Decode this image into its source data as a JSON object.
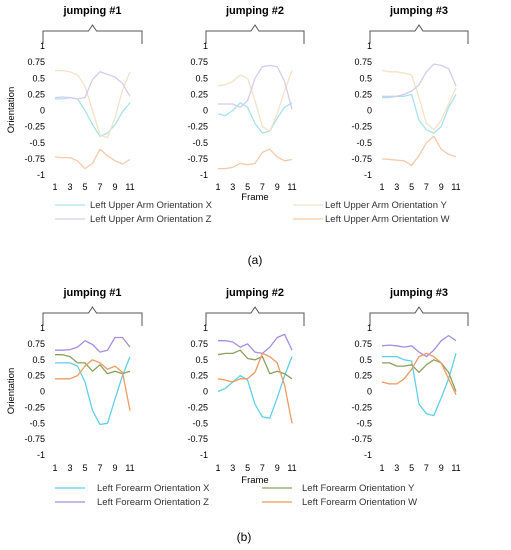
{
  "chart_data": [
    {
      "type": "line",
      "x": [
        1,
        2,
        3,
        4,
        5,
        6,
        7,
        8,
        9,
        10,
        11
      ],
      "title": "jumping #1",
      "ylabel": "Orientation",
      "xlabel": "",
      "ylim": [
        -1,
        1
      ],
      "xticks": [
        1,
        3,
        5,
        7,
        9,
        11
      ],
      "yticks": [
        1,
        0.75,
        0.5,
        0.25,
        0,
        -0.25,
        -0.5,
        -0.75,
        -1
      ],
      "series": [
        {
          "name": "Left Upper Arm Orientation X",
          "color": "#a8e2ee",
          "values": [
            0.18,
            0.18,
            0.2,
            0.18,
            0.0,
            -0.22,
            -0.4,
            -0.35,
            -0.22,
            -0.02,
            0.12
          ]
        },
        {
          "name": "Left Upper Arm Orientation Y",
          "color": "#f4e2c6",
          "values": [
            0.62,
            0.62,
            0.6,
            0.55,
            0.38,
            0.0,
            -0.38,
            -0.42,
            -0.12,
            0.32,
            0.6
          ]
        },
        {
          "name": "Left Upper Arm Orientation Z",
          "color": "#d4ccec",
          "values": [
            0.2,
            0.21,
            0.2,
            0.18,
            0.2,
            0.48,
            0.6,
            0.56,
            0.52,
            0.42,
            0.22
          ]
        },
        {
          "name": "Left Upper Arm Orientation W",
          "color": "#f7c9ab",
          "values": [
            -0.72,
            -0.73,
            -0.73,
            -0.78,
            -0.9,
            -0.82,
            -0.6,
            -0.7,
            -0.78,
            -0.83,
            -0.76
          ]
        }
      ]
    },
    {
      "type": "line",
      "x": [
        1,
        2,
        3,
        4,
        5,
        6,
        7,
        8,
        9,
        10,
        11
      ],
      "title": "jumping #2",
      "ylabel": "",
      "xlabel": "Frame",
      "ylim": [
        -1,
        1
      ],
      "xticks": [
        1,
        3,
        5,
        7,
        9,
        11
      ],
      "yticks": [
        1,
        0.75,
        0.5,
        0.25,
        0,
        -0.25,
        -0.5,
        -0.75,
        -1
      ],
      "series": [
        {
          "name": "Left Upper Arm Orientation X",
          "color": "#a8e2ee",
          "values": [
            -0.05,
            -0.08,
            0.0,
            0.12,
            0.05,
            -0.2,
            -0.35,
            -0.32,
            -0.12,
            0.05,
            0.12
          ]
        },
        {
          "name": "Left Upper Arm Orientation Y",
          "color": "#f4e2c6",
          "values": [
            0.38,
            0.4,
            0.45,
            0.55,
            0.5,
            0.15,
            -0.25,
            -0.32,
            -0.05,
            0.3,
            0.62
          ]
        },
        {
          "name": "Left Upper Arm Orientation Z",
          "color": "#d4ccec",
          "values": [
            0.1,
            0.1,
            0.1,
            0.05,
            0.15,
            0.5,
            0.68,
            0.7,
            0.68,
            0.45,
            0.02
          ]
        },
        {
          "name": "Left Upper Arm Orientation W",
          "color": "#f7c9ab",
          "values": [
            -0.9,
            -0.9,
            -0.88,
            -0.82,
            -0.84,
            -0.82,
            -0.65,
            -0.6,
            -0.72,
            -0.78,
            -0.76
          ]
        }
      ]
    },
    {
      "type": "line",
      "x": [
        1,
        2,
        3,
        4,
        5,
        6,
        7,
        8,
        9,
        10,
        11
      ],
      "title": "jumping #3",
      "ylabel": "",
      "xlabel": "",
      "ylim": [
        -1,
        1
      ],
      "xticks": [
        1,
        3,
        5,
        7,
        9,
        11
      ],
      "yticks": [
        1,
        0.75,
        0.5,
        0.25,
        0,
        -0.25,
        -0.5,
        -0.75,
        -1
      ],
      "series": [
        {
          "name": "Left Upper Arm Orientation X",
          "color": "#a8e2ee",
          "values": [
            0.2,
            0.2,
            0.22,
            0.22,
            0.25,
            -0.15,
            -0.3,
            -0.35,
            -0.25,
            0.05,
            0.25
          ]
        },
        {
          "name": "Left Upper Arm Orientation Y",
          "color": "#f4e2c6",
          "values": [
            0.62,
            0.6,
            0.6,
            0.58,
            0.55,
            0.2,
            -0.2,
            -0.3,
            -0.15,
            0.1,
            0.35
          ]
        },
        {
          "name": "Left Upper Arm Orientation Z",
          "color": "#d4ccec",
          "values": [
            0.22,
            0.22,
            0.22,
            0.25,
            0.3,
            0.4,
            0.6,
            0.72,
            0.7,
            0.65,
            0.38
          ]
        },
        {
          "name": "Left Upper Arm Orientation W",
          "color": "#f7c9ab",
          "values": [
            -0.75,
            -0.76,
            -0.77,
            -0.78,
            -0.85,
            -0.7,
            -0.5,
            -0.4,
            -0.6,
            -0.68,
            -0.72
          ]
        }
      ]
    },
    {
      "type": "line",
      "x": [
        1,
        2,
        3,
        4,
        5,
        6,
        7,
        8,
        9,
        10,
        11
      ],
      "title": "jumping #1",
      "ylabel": "Orientation",
      "xlabel": "",
      "ylim": [
        -1,
        1
      ],
      "xticks": [
        1,
        3,
        5,
        7,
        9,
        11
      ],
      "yticks": [
        1,
        0.75,
        0.5,
        0.25,
        0,
        -0.25,
        -0.5,
        -0.75,
        -1
      ],
      "series": [
        {
          "name": "Left Forearm Orientation X",
          "color": "#5fd0ea",
          "values": [
            0.45,
            0.45,
            0.45,
            0.4,
            0.15,
            -0.3,
            -0.52,
            -0.5,
            -0.12,
            0.25,
            0.55
          ]
        },
        {
          "name": "Left Forearm Orientation Y",
          "color": "#8ba05e",
          "values": [
            0.58,
            0.58,
            0.55,
            0.45,
            0.45,
            0.32,
            0.42,
            0.28,
            0.32,
            0.28,
            0.32
          ]
        },
        {
          "name": "Left Forearm Orientation Z",
          "color": "#a58ee0",
          "values": [
            0.65,
            0.65,
            0.66,
            0.7,
            0.8,
            0.74,
            0.62,
            0.65,
            0.85,
            0.85,
            0.7
          ]
        },
        {
          "name": "Left Forearm Orientation W",
          "color": "#ef9a62",
          "values": [
            0.2,
            0.2,
            0.2,
            0.25,
            0.4,
            0.5,
            0.45,
            0.35,
            0.4,
            0.3,
            -0.3
          ]
        }
      ]
    },
    {
      "type": "line",
      "x": [
        1,
        2,
        3,
        4,
        5,
        6,
        7,
        8,
        9,
        10,
        11
      ],
      "title": "jumping #2",
      "ylabel": "",
      "xlabel": "Frame",
      "ylim": [
        -1,
        1
      ],
      "xticks": [
        1,
        3,
        5,
        7,
        9,
        11
      ],
      "yticks": [
        1,
        0.75,
        0.5,
        0.25,
        0,
        -0.25,
        -0.5,
        -0.75,
        -1
      ],
      "series": [
        {
          "name": "Left Forearm Orientation X",
          "color": "#5fd0ea",
          "values": [
            0.0,
            0.05,
            0.15,
            0.25,
            0.18,
            -0.2,
            -0.4,
            -0.42,
            -0.1,
            0.25,
            0.55
          ]
        },
        {
          "name": "Left Forearm Orientation Y",
          "color": "#8ba05e",
          "values": [
            0.58,
            0.6,
            0.6,
            0.65,
            0.52,
            0.5,
            0.55,
            0.28,
            0.32,
            0.28,
            0.2
          ]
        },
        {
          "name": "Left Forearm Orientation Z",
          "color": "#a58ee0",
          "values": [
            0.8,
            0.8,
            0.78,
            0.7,
            0.75,
            0.62,
            0.6,
            0.7,
            0.85,
            0.9,
            0.65
          ]
        },
        {
          "name": "Left Forearm Orientation W",
          "color": "#ef9a62",
          "values": [
            0.2,
            0.18,
            0.15,
            0.2,
            0.2,
            0.3,
            0.6,
            0.55,
            0.45,
            0.1,
            -0.5
          ]
        }
      ]
    },
    {
      "type": "line",
      "x": [
        1,
        2,
        3,
        4,
        5,
        6,
        7,
        8,
        9,
        10,
        11
      ],
      "title": "jumping #3",
      "ylabel": "",
      "xlabel": "",
      "ylim": [
        -1,
        1
      ],
      "xticks": [
        1,
        3,
        5,
        7,
        9,
        11
      ],
      "yticks": [
        1,
        0.75,
        0.5,
        0.25,
        0,
        -0.25,
        -0.5,
        -0.75,
        -1
      ],
      "series": [
        {
          "name": "Left Forearm Orientation X",
          "color": "#5fd0ea",
          "values": [
            0.55,
            0.55,
            0.55,
            0.5,
            0.48,
            -0.2,
            -0.35,
            -0.38,
            -0.1,
            0.2,
            0.6
          ]
        },
        {
          "name": "Left Forearm Orientation Y",
          "color": "#8ba05e",
          "values": [
            0.45,
            0.45,
            0.4,
            0.4,
            0.42,
            0.3,
            0.42,
            0.5,
            0.45,
            0.3,
            0.0
          ]
        },
        {
          "name": "Left Forearm Orientation Z",
          "color": "#a58ee0",
          "values": [
            0.72,
            0.73,
            0.72,
            0.7,
            0.72,
            0.62,
            0.55,
            0.65,
            0.8,
            0.88,
            0.8
          ]
        },
        {
          "name": "Left Forearm Orientation W",
          "color": "#ef9a62",
          "values": [
            0.15,
            0.12,
            0.12,
            0.2,
            0.35,
            0.55,
            0.6,
            0.55,
            0.45,
            0.2,
            -0.05
          ]
        }
      ]
    }
  ],
  "legends": {
    "a": [
      "Left Upper Arm Orientation X",
      "Left Upper Arm Orientation Y",
      "Left Upper Arm Orientation Z",
      "Left Upper Arm Orientation W"
    ],
    "b": [
      "Left Forearm Orientation X",
      "Left Forearm Orientation Y",
      "Left Forearm Orientation Z",
      "Left Forearm Orientation W"
    ]
  },
  "panel_labels": {
    "a": "(a)",
    "b": "(b)"
  }
}
